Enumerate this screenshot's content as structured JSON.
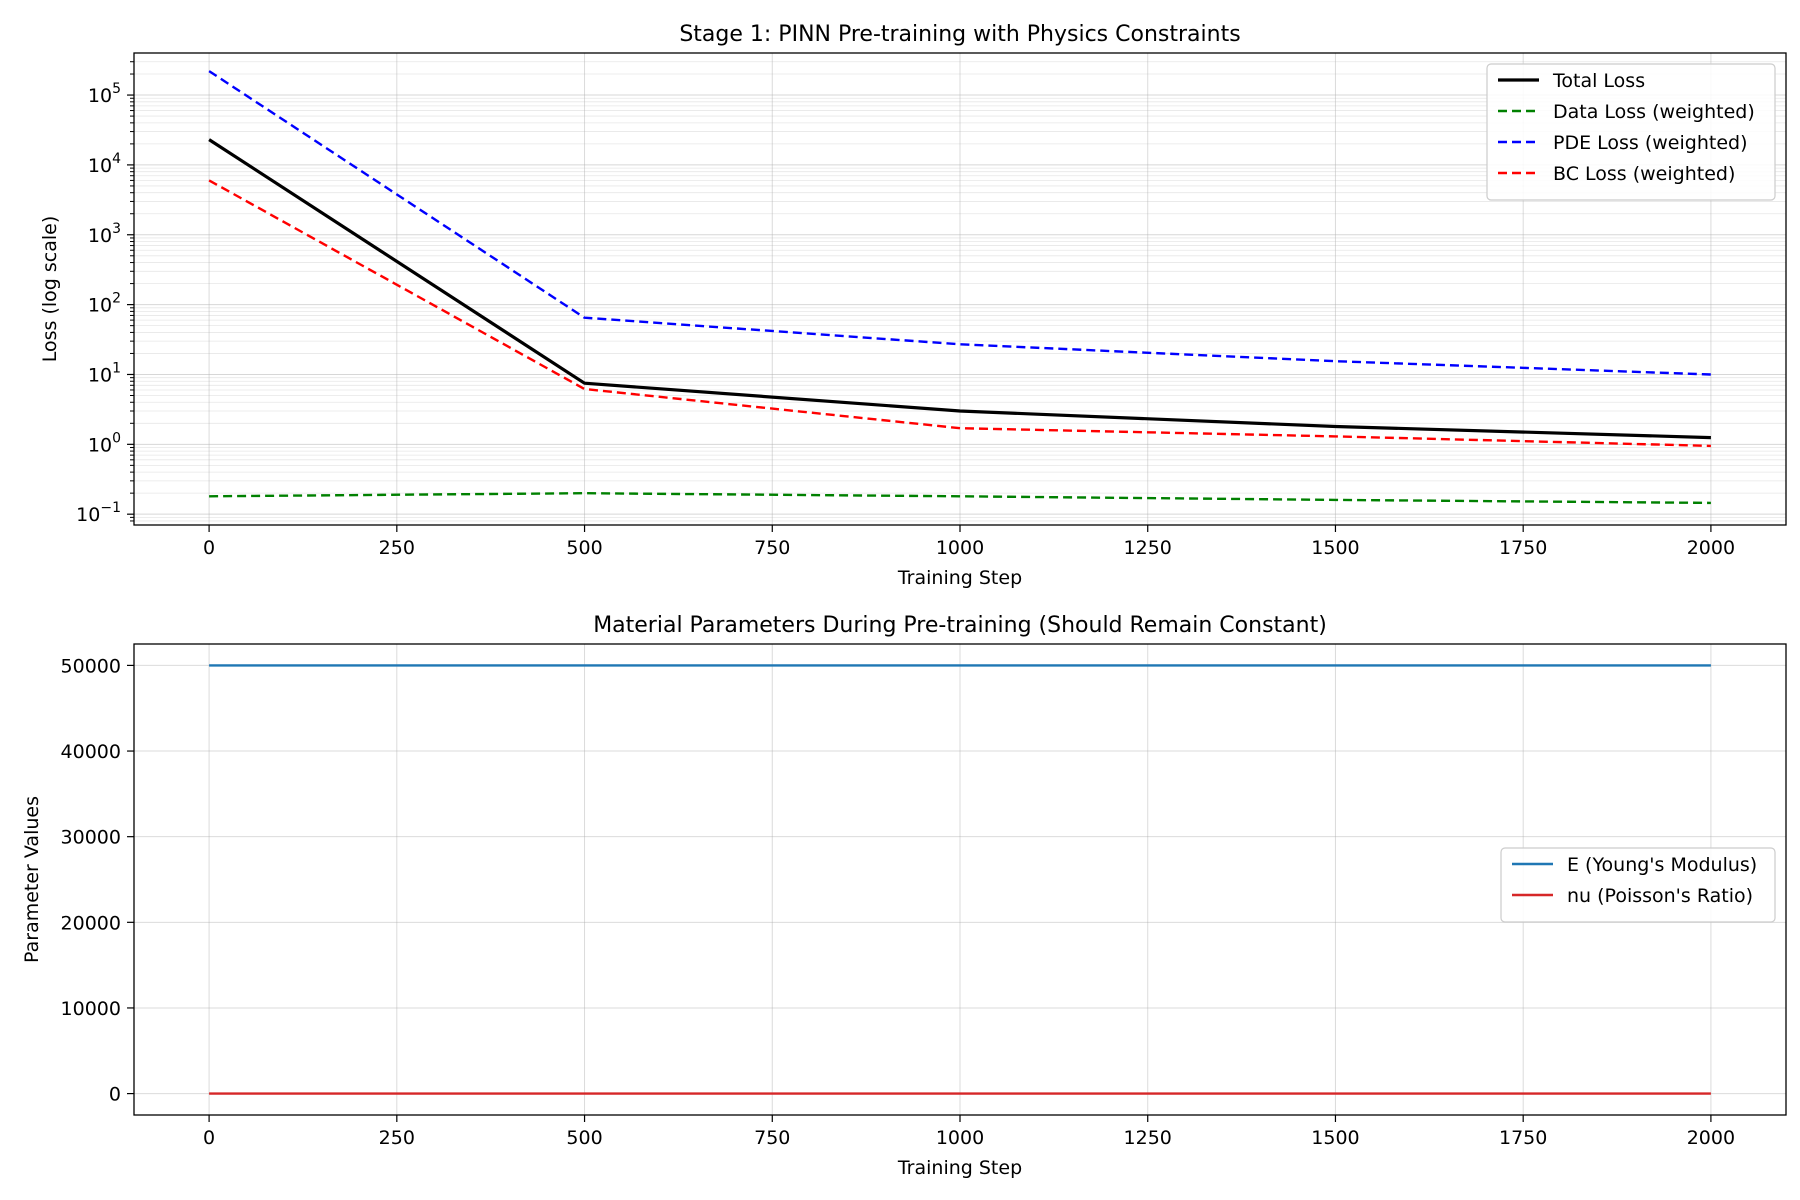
{
  "chart_data": [
    {
      "type": "line",
      "title": "Stage 1: PINN Pre-training with Physics Constraints",
      "xlabel": "Training Step",
      "ylabel": "Loss (log scale)",
      "yscale": "log",
      "xlim": [
        -100,
        2100
      ],
      "ylim": [
        0.07,
        400000
      ],
      "xticks": [
        0,
        250,
        500,
        750,
        1000,
        1250,
        1500,
        1750,
        2000
      ],
      "yticks": [
        {
          "value": 0.1,
          "base": "10",
          "exp": "−1"
        },
        {
          "value": 1,
          "base": "10",
          "exp": "0"
        },
        {
          "value": 10,
          "base": "10",
          "exp": "1"
        },
        {
          "value": 100,
          "base": "10",
          "exp": "2"
        },
        {
          "value": 1000,
          "base": "10",
          "exp": "3"
        },
        {
          "value": 10000,
          "base": "10",
          "exp": "4"
        },
        {
          "value": 100000,
          "base": "10",
          "exp": "5"
        }
      ],
      "grid": true,
      "legend_position": "top-right",
      "x": [
        0,
        500,
        1000,
        1500,
        2000
      ],
      "series": [
        {
          "name": "Total Loss",
          "color": "#000000",
          "dash": "solid",
          "values": [
            23000,
            7.5,
            3.0,
            1.8,
            1.25
          ]
        },
        {
          "name": "Data Loss (weighted)",
          "color": "#008000",
          "dash": "dashed",
          "values": [
            0.18,
            0.2,
            0.18,
            0.16,
            0.145
          ]
        },
        {
          "name": "PDE Loss (weighted)",
          "color": "#0000ff",
          "dash": "dashed",
          "values": [
            220000,
            65,
            27,
            15.5,
            10
          ]
        },
        {
          "name": "BC Loss (weighted)",
          "color": "#ff0000",
          "dash": "dashed",
          "values": [
            6000,
            6.2,
            1.7,
            1.3,
            0.95
          ]
        }
      ]
    },
    {
      "type": "line",
      "title": "Material Parameters During Pre-training (Should Remain Constant)",
      "xlabel": "Training Step",
      "ylabel": "Parameter Values",
      "yscale": "linear",
      "xlim": [
        -100,
        2100
      ],
      "ylim": [
        -2500,
        52500
      ],
      "xticks": [
        0,
        250,
        500,
        750,
        1000,
        1250,
        1500,
        1750,
        2000
      ],
      "yticks": [
        0,
        10000,
        20000,
        30000,
        40000,
        50000
      ],
      "grid": true,
      "legend_position": "center-right",
      "x": [
        0,
        500,
        1000,
        1500,
        2000
      ],
      "series": [
        {
          "name": "E (Young's Modulus)",
          "color": "#1f77b4",
          "dash": "solid",
          "values": [
            50000,
            50000,
            50000,
            50000,
            50000
          ]
        },
        {
          "name": "nu (Poisson's Ratio)",
          "color": "#d62728",
          "dash": "solid",
          "values": [
            0.3,
            0.3,
            0.3,
            0.3,
            0.3
          ]
        }
      ]
    }
  ]
}
